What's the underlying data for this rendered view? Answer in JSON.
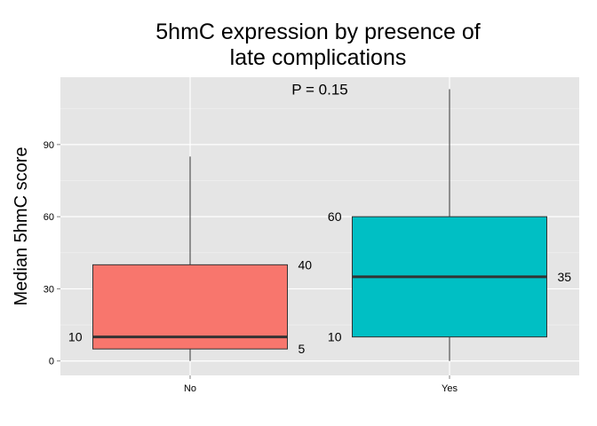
{
  "chart_data": {
    "type": "box",
    "title_lines": [
      "5hmC expression by presence of",
      "late complications"
    ],
    "xlabel": "",
    "ylabel": "Median 5hmC score",
    "ylim": [
      -6,
      118
    ],
    "y_ticks": [
      0,
      30,
      60,
      90
    ],
    "categories": [
      "No",
      "Yes"
    ],
    "grid": true,
    "boxes": [
      {
        "category": "No",
        "min": 0,
        "q1": 5,
        "median": 10,
        "q3": 40,
        "max": 85,
        "fill": "#F8766D",
        "labels": [
          {
            "text": "40",
            "value": 40,
            "side": "right"
          },
          {
            "text": "10",
            "value": 10,
            "side": "left"
          },
          {
            "text": "5",
            "value": 5,
            "side": "right"
          }
        ]
      },
      {
        "category": "Yes",
        "min": 0,
        "q1": 10,
        "median": 35,
        "q3": 60,
        "max": 113,
        "fill": "#00BFC4",
        "labels": [
          {
            "text": "60",
            "value": 60,
            "side": "left"
          },
          {
            "text": "35",
            "value": 35,
            "side": "right"
          },
          {
            "text": "10",
            "value": 10,
            "side": "left"
          }
        ]
      }
    ],
    "annotation": {
      "text": "P = 0.15",
      "y": 113
    },
    "colors": {
      "panel_background": "#E5E5E5",
      "grid_major": "#FFFFFF",
      "grid_minor": "#F2F2F2",
      "box_outline": "#333333",
      "whisker": "#333333"
    }
  }
}
